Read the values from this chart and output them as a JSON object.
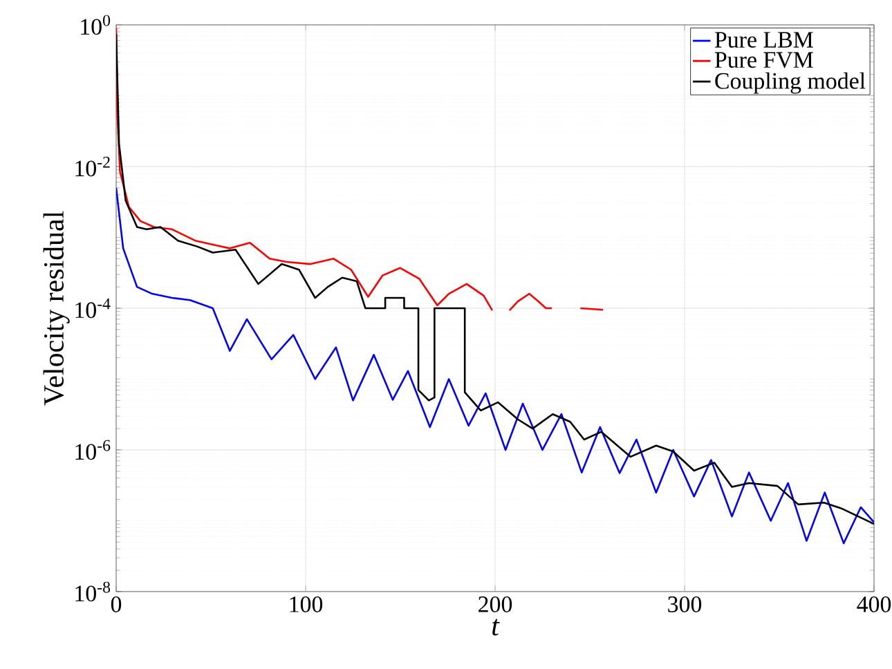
{
  "chart_data": {
    "type": "line",
    "xlabel": "t",
    "ylabel": "Velocity residual",
    "log": "y",
    "grid": true,
    "legend": "top right",
    "xlim": [
      0,
      400
    ],
    "xticks": [
      0,
      100,
      200,
      300,
      400
    ],
    "ylim": [
      1e-08,
      1
    ],
    "yticks": [
      {
        "value": 1e-08,
        "label": "10$^{-8}$"
      },
      {
        "value": 1e-06,
        "label": "10$^{-6}$"
      },
      {
        "value": 0.0001,
        "label": "10$^{-4}$"
      },
      {
        "value": 0.01,
        "label": "10$^{-2}$"
      },
      {
        "value": 1,
        "label": "10$^{0}$"
      }
    ],
    "series": [
      {
        "name": "Pure LBM",
        "color": "#0000ff",
        "x": [
          0,
          3.7,
          11,
          19,
          29.5,
          39,
          51,
          60,
          69,
          82,
          93.5,
          105,
          116,
          125,
          136,
          146,
          154,
          165.6,
          175.6,
          186,
          195,
          205.5,
          214.6,
          225,
          235,
          245.7,
          255.4,
          265.7,
          274.6,
          285,
          294,
          305,
          314,
          325,
          334,
          345.5,
          354.6,
          364.4,
          374,
          384,
          393,
          400
        ],
        "values": [
          0.005,
          0.0007,
          0.0002,
          0.00016,
          0.00014,
          0.00013,
          0.0001,
          2.5e-05,
          7e-05,
          1.9e-05,
          4.2e-05,
          1e-05,
          2.8e-05,
          5e-06,
          2.2e-05,
          5.1e-06,
          1.3e-05,
          2.1e-06,
          1e-05,
          2.2e-06,
          6.3e-06,
          1e-06,
          4.5e-06,
          1e-06,
          3.2e-06,
          4.8e-07,
          2.1e-06,
          4.7e-07,
          1.4e-06,
          2.5e-07,
          1e-06,
          2.2e-07,
          7.2e-07,
          1.15e-07,
          4.8e-07,
          1e-07,
          3.4e-07,
          5.2e-08,
          2.5e-07,
          4.8e-08,
          1.55e-07,
          9.5e-08
        ]
      },
      {
        "name": "Pure FVM",
        "color": "#ff0000",
        "x": [
          0,
          0.6,
          2,
          6.7,
          12.8,
          20,
          29.5,
          41.7,
          54,
          60,
          70.6,
          81,
          90,
          102.6,
          114.8,
          124,
          133,
          140.6,
          149.8,
          160,
          169.5,
          175.6,
          185,
          194,
          198.5,
          203,
          207.6,
          212,
          218,
          222.8,
          226.8,
          230,
          238,
          245,
          257
        ],
        "values": [
          0.9,
          0.055,
          0.0085,
          0.0027,
          0.0017,
          0.0014,
          0.0013,
          0.0009,
          0.00076,
          0.0007,
          0.00084,
          0.0005,
          0.00045,
          0.00042,
          0.0005,
          0.00035,
          0.000145,
          0.00029,
          0.00037,
          0.00026,
          0.00011,
          0.00016,
          0.00022,
          0.00015,
          9.3e-05,
          null,
          9.3e-05,
          0.000125,
          0.00016,
          0.000125,
          0.0001,
          0.0001,
          null,
          0.0001,
          9.5e-05
        ]
      },
      {
        "name": "Coupling model",
        "color": "#000000",
        "x": [
          0,
          1.5,
          5,
          11,
          16,
          23.4,
          32.6,
          43,
          51,
          63,
          75,
          87.4,
          96.5,
          105,
          111.7,
          119.3,
          127,
          131.5,
          142,
          142,
          152,
          152,
          159.5,
          159.5,
          165,
          168,
          168,
          184,
          184,
          192.4,
          201.5,
          212,
          219.8,
          230.4,
          239.6,
          247,
          256,
          271.5,
          285,
          294,
          305,
          315.7,
          325,
          334,
          349,
          360,
          373.5,
          382.6,
          400
        ],
        "values": [
          0.75,
          0.021,
          0.0033,
          0.0014,
          0.0013,
          0.0014,
          0.0009,
          0.00074,
          0.00061,
          0.00067,
          0.00022,
          0.00042,
          0.00035,
          0.00014,
          0.0002,
          0.00027,
          0.00024,
          0.0001,
          0.0001,
          0.00014,
          0.00014,
          0.0001,
          0.0001,
          7e-06,
          5e-06,
          5.5e-06,
          0.0001,
          0.0001,
          6.5e-06,
          3.6e-06,
          4.7e-06,
          2.7e-06,
          2e-06,
          3.2e-06,
          2.5e-06,
          1.4e-06,
          1.8e-06,
          8e-07,
          1.15e-06,
          9.5e-07,
          5.1e-07,
          6.6e-07,
          3e-07,
          3.4e-07,
          3.1e-07,
          1.7e-07,
          1.8e-07,
          1.5e-07,
          9e-08
        ]
      }
    ]
  }
}
